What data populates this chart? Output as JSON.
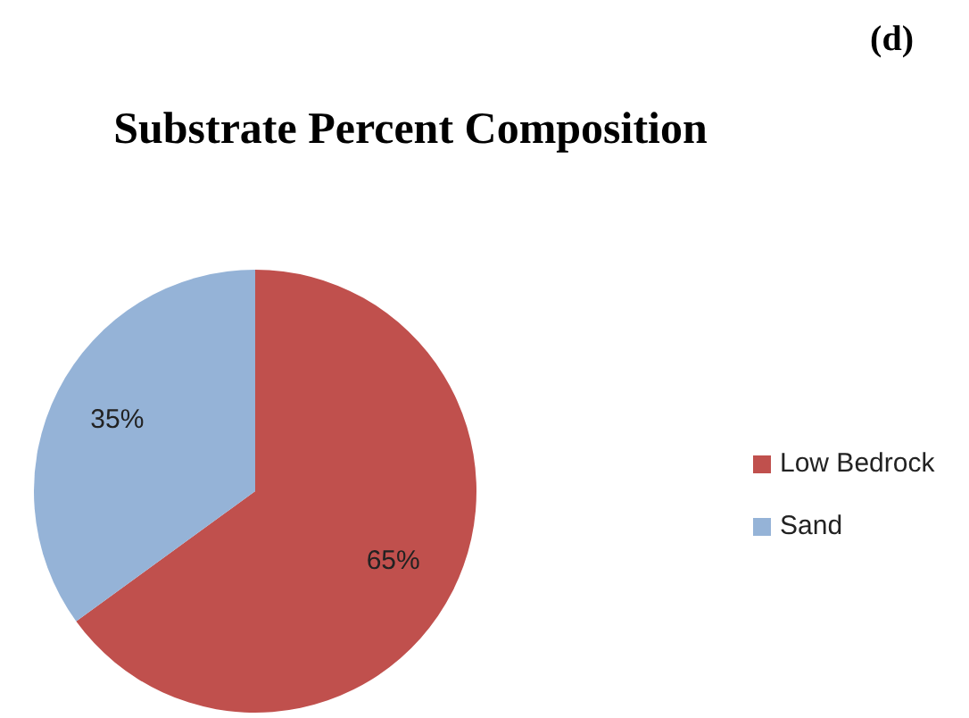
{
  "chart_data": {
    "type": "pie",
    "title": "Substrate Percent Composition",
    "annotations": [
      "(d)"
    ],
    "categories": [
      "Low Bedrock",
      "Sand"
    ],
    "values": [
      65,
      35
    ],
    "colors": [
      "#c0504d",
      "#95b3d7"
    ],
    "value_labels": [
      "65%",
      "35%"
    ],
    "legend": "right"
  }
}
